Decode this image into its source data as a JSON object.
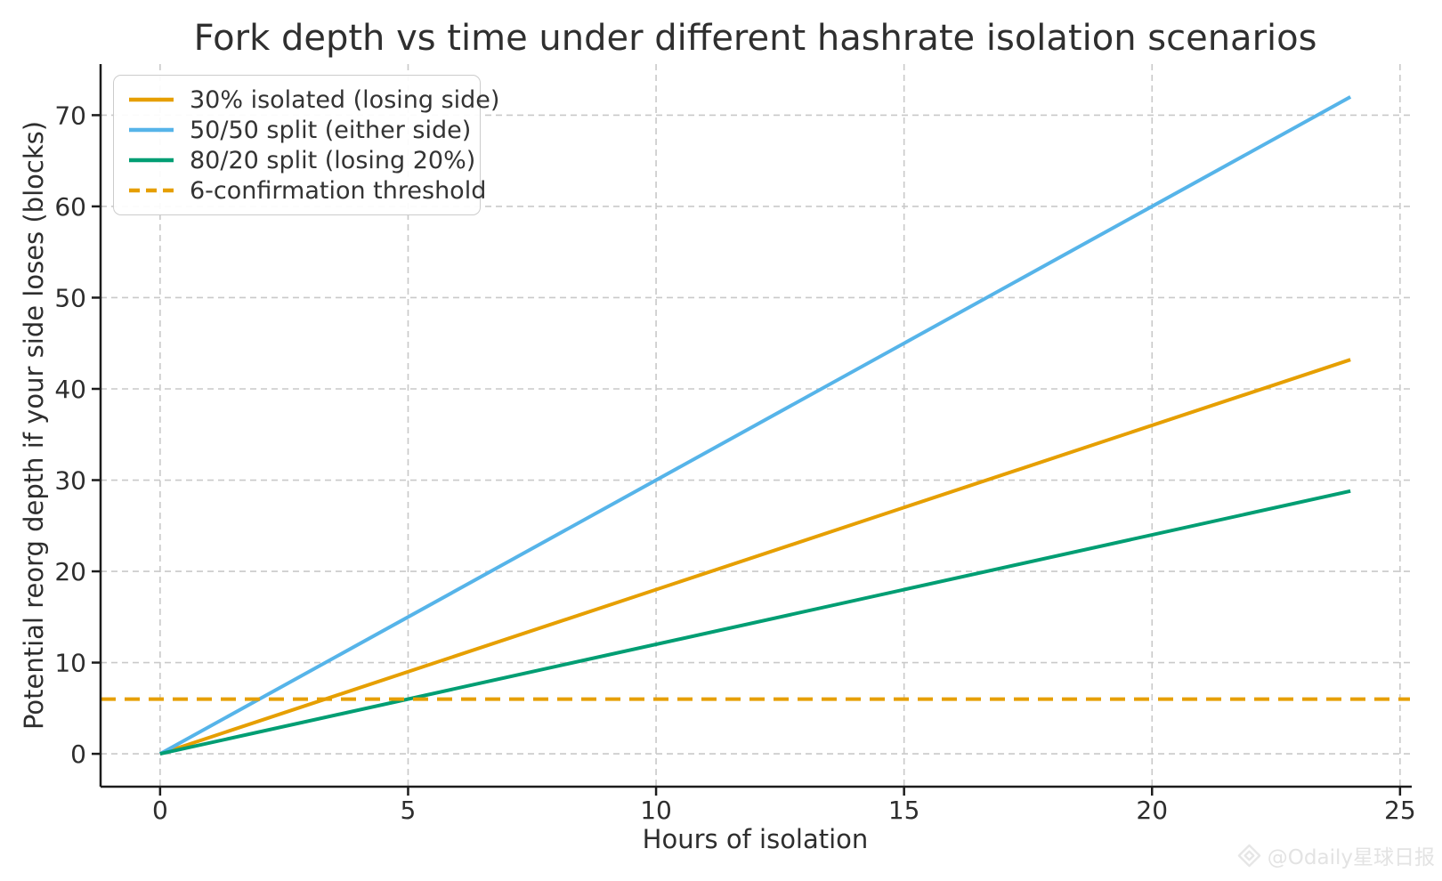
{
  "chart_data": {
    "type": "line",
    "title": "Fork depth vs time under different hashrate isolation scenarios",
    "xlabel": "Hours of isolation",
    "ylabel": "Potential reorg depth if your side loses (blocks)",
    "xlim": [
      -1.2,
      25.2
    ],
    "ylim": [
      -3.6,
      75.6
    ],
    "xticks": [
      0,
      5,
      10,
      15,
      20,
      25
    ],
    "yticks": [
      0,
      10,
      20,
      30,
      40,
      50,
      60,
      70
    ],
    "grid": true,
    "legend_position": "upper-left",
    "series": [
      {
        "name": "30% isolated (losing side)",
        "color": "#E69F00",
        "style": "solid",
        "x": [
          0,
          24
        ],
        "y": [
          0,
          43.2
        ]
      },
      {
        "name": "50/50 split (either side)",
        "color": "#56B4E9",
        "style": "solid",
        "x": [
          0,
          24
        ],
        "y": [
          0,
          72
        ]
      },
      {
        "name": "80/20 split (losing 20%)",
        "color": "#009E73",
        "style": "solid",
        "x": [
          0,
          24
        ],
        "y": [
          0,
          28.8
        ]
      },
      {
        "name": "6-confirmation threshold",
        "color": "#E69F00",
        "style": "dashed",
        "x": [
          -1.2,
          25.2
        ],
        "y": [
          6,
          6
        ]
      }
    ]
  },
  "watermark": {
    "text": "@Odaily星球日报",
    "icon": "diamond-logo"
  }
}
